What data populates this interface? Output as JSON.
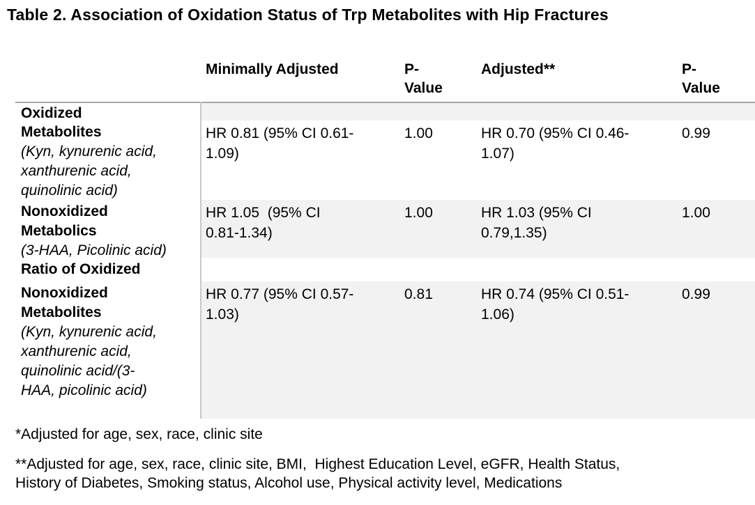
{
  "title": "Table 2. Association of Oxidation Status of Trp Metabolites with Hip Fractures",
  "table": {
    "columns": {
      "c1": "Minimally Adjusted",
      "c2": "P-\nValue",
      "c3": "Adjusted**",
      "c4": "P-\nValue"
    },
    "rows": [
      {
        "label_bold": "Oxidized",
        "label_italic": "",
        "shaded": true,
        "cells": [
          "",
          "",
          "",
          ""
        ]
      },
      {
        "label_bold": "Metabolites",
        "label_italic": "(Kyn, kynurenic acid,\nxanthurenic acid,\nquinolinic acid)",
        "shaded": false,
        "cells": [
          "HR 0.81 (95% CI 0.61-\n1.09)",
          "1.00",
          "HR 0.70 (95% CI 0.46-\n1.07)",
          "0.99"
        ]
      },
      {
        "label_bold": "Nonoxidized\nMetabolics",
        "label_italic": "(3-HAA, Picolinic acid)",
        "shaded": true,
        "cells": [
          "HR 1.05  (95% CI\n0.81-1.34)",
          "1.00",
          "HR 1.03 (95% CI\n0.79,1.35)",
          "1.00"
        ]
      },
      {
        "label_bold": "Ratio of Oxidized",
        "label_italic": "",
        "shaded": false,
        "cells": [
          "",
          "",
          "",
          ""
        ]
      },
      {
        "label_bold": "Nonoxidized\nMetabolites",
        "label_italic": "(Kyn, kynurenic acid,\nxanthurenic acid,\nquinolinic acid/(3-\nHAA, picolinic acid)",
        "shaded": true,
        "cells": [
          "HR 0.77 (95% CI 0.57-\n1.03)",
          "0.81",
          "HR 0.74 (95% CI 0.51-\n1.06)",
          "0.99"
        ]
      }
    ]
  },
  "footnotes": [
    "*Adjusted for age, sex, race, clinic site",
    "**Adjusted for age, sex, race, clinic site, BMI,  Highest Education Level, eGFR, Health Status,\nHistory of Diabetes, Smoking status, Alcohol use, Physical activity level, Medications"
  ],
  "colors": {
    "row_band": "#f2f2f2",
    "header_border": "#a6a6a6",
    "column_divider": "#c9c9c9",
    "text": "#000000",
    "background": "#ffffff"
  }
}
